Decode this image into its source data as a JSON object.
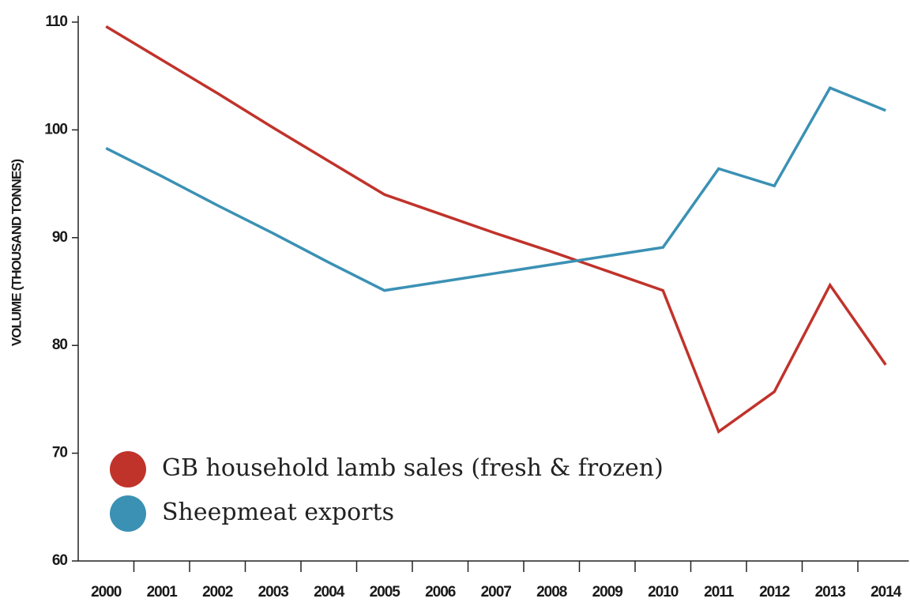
{
  "chart_data": {
    "type": "line",
    "y_label": "VOLUME (THOUSAND TONNES)",
    "categories": [
      "2000",
      "2001",
      "2002",
      "2003",
      "2004",
      "2005",
      "2006",
      "2007",
      "2008",
      "2009",
      "2010",
      "2011",
      "2012",
      "2013",
      "2014"
    ],
    "series": [
      {
        "name": "GB household lamb sales (fresh & frozen)",
        "color": "#c0332b",
        "values": [
          109.6,
          106.5,
          103.4,
          100.2,
          97.1,
          94.0,
          92.2,
          90.4,
          88.7,
          86.9,
          85.1,
          72.0,
          75.7,
          85.6,
          78.2
        ]
      },
      {
        "name": "Sheepmeat exports",
        "color": "#3b91b4",
        "values": [
          98.3,
          95.7,
          93.0,
          90.4,
          87.7,
          85.1,
          85.9,
          86.7,
          87.5,
          88.3,
          89.1,
          96.4,
          94.8,
          103.9,
          101.8
        ]
      }
    ],
    "ylim": [
      60,
      110
    ],
    "yticks": [
      60,
      70,
      80,
      90,
      100,
      110
    ]
  }
}
